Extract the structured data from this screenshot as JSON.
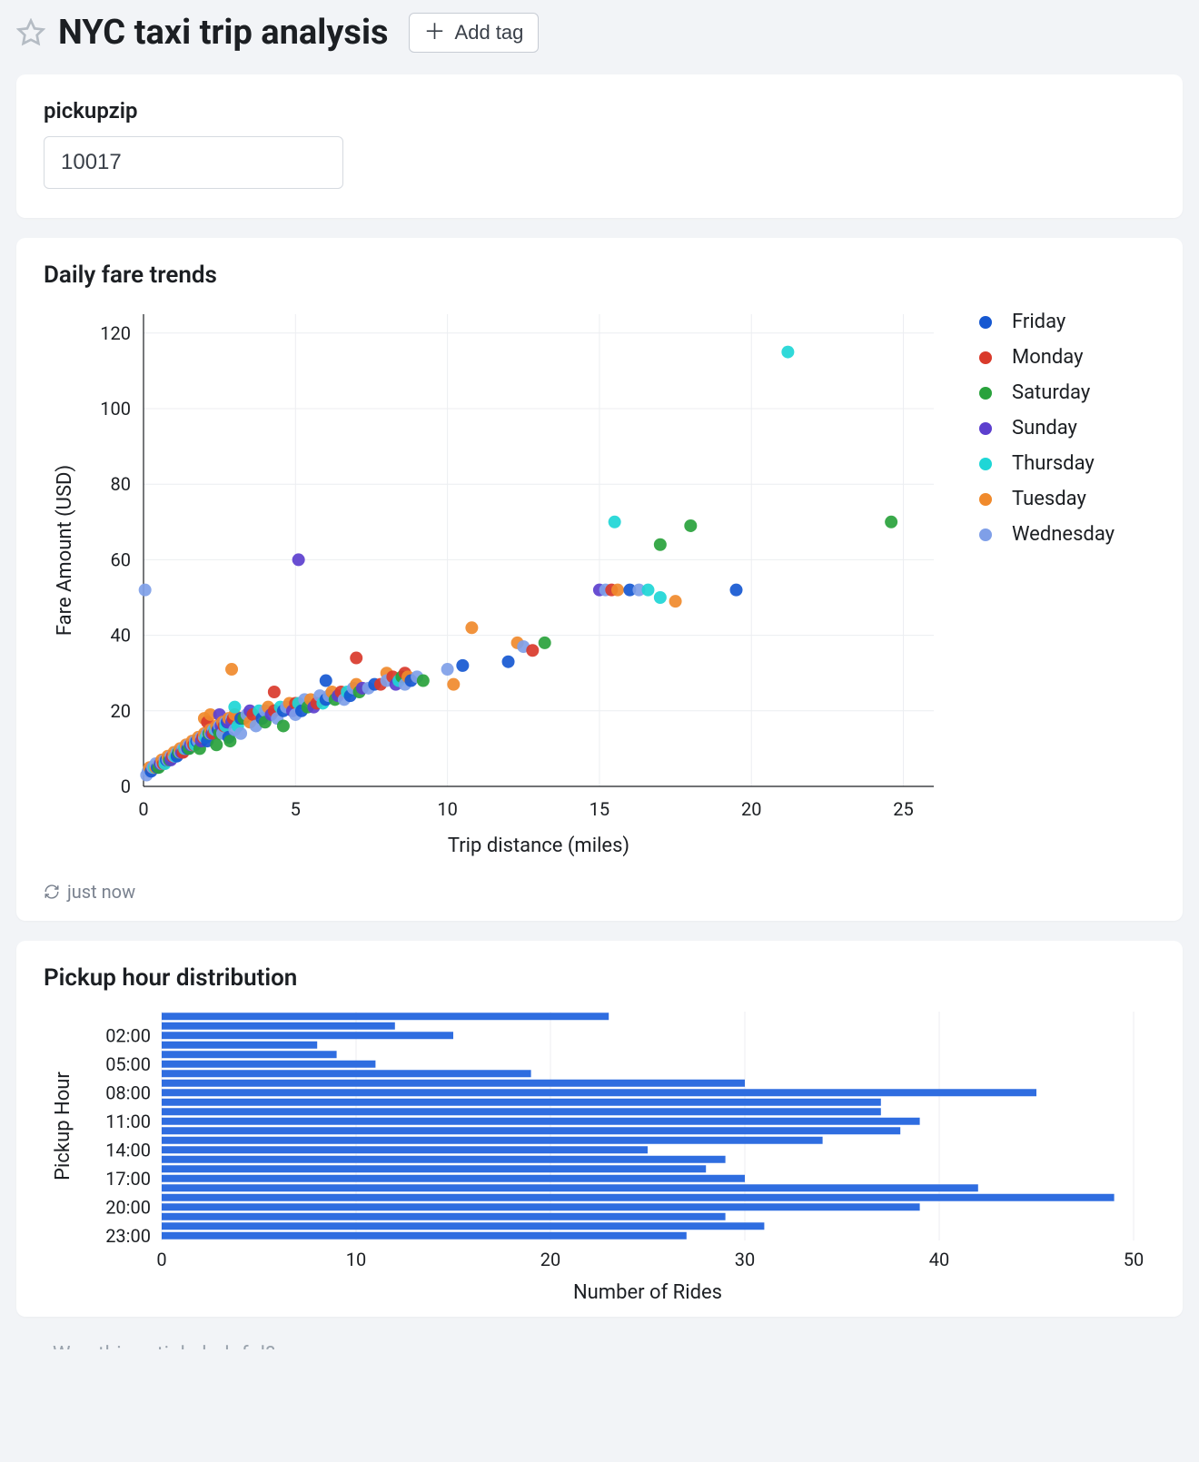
{
  "header": {
    "title": "NYC taxi trip analysis",
    "add_tag_label": "Add tag"
  },
  "param_card": {
    "label": "pickupzip",
    "value": "10017"
  },
  "scatter": {
    "title": "Daily fare trends",
    "type": "scatter",
    "xlabel": "Trip distance (miles)",
    "ylabel": "Fare Amount (USD)",
    "xlim": [
      0,
      26
    ],
    "ylim": [
      0,
      125
    ],
    "xticks": [
      0,
      5,
      10,
      15,
      20,
      25
    ],
    "yticks": [
      0,
      20,
      40,
      60,
      80,
      100,
      120
    ],
    "label_fontsize": 22,
    "tick_fontsize": 20,
    "marker_radius": 7,
    "background_color": "#ffffff",
    "grid_color": "#eceef1",
    "axis_color": "#1c1f23",
    "series": [
      {
        "name": "Friday",
        "color": "#1658d1"
      },
      {
        "name": "Monday",
        "color": "#d93a2b"
      },
      {
        "name": "Saturday",
        "color": "#29a23c"
      },
      {
        "name": "Sunday",
        "color": "#5c3fce"
      },
      {
        "name": "Thursday",
        "color": "#1ed6d6"
      },
      {
        "name": "Tuesday",
        "color": "#f08a2c"
      },
      {
        "name": "Wednesday",
        "color": "#7f9fe8"
      }
    ],
    "points": [
      [
        0.1,
        3,
        "Wednesday"
      ],
      [
        0.15,
        4,
        "Wednesday"
      ],
      [
        0.2,
        4,
        "Wednesday"
      ],
      [
        0.2,
        5,
        "Tuesday"
      ],
      [
        0.25,
        4,
        "Friday"
      ],
      [
        0.3,
        5,
        "Monday"
      ],
      [
        0.3,
        5,
        "Wednesday"
      ],
      [
        0.35,
        5,
        "Thursday"
      ],
      [
        0.4,
        5,
        "Tuesday"
      ],
      [
        0.4,
        6,
        "Wednesday"
      ],
      [
        0.45,
        5,
        "Friday"
      ],
      [
        0.5,
        6,
        "Wednesday"
      ],
      [
        0.5,
        5,
        "Saturday"
      ],
      [
        0.55,
        6,
        "Sunday"
      ],
      [
        0.6,
        6,
        "Wednesday"
      ],
      [
        0.6,
        7,
        "Tuesday"
      ],
      [
        0.65,
        6,
        "Monday"
      ],
      [
        0.7,
        7,
        "Wednesday"
      ],
      [
        0.7,
        6,
        "Thursday"
      ],
      [
        0.75,
        7,
        "Friday"
      ],
      [
        0.8,
        7,
        "Wednesday"
      ],
      [
        0.8,
        8,
        "Tuesday"
      ],
      [
        0.85,
        7,
        "Saturday"
      ],
      [
        0.9,
        8,
        "Wednesday"
      ],
      [
        0.9,
        7,
        "Sunday"
      ],
      [
        0.95,
        8,
        "Monday"
      ],
      [
        1.0,
        8,
        "Wednesday"
      ],
      [
        1.0,
        9,
        "Tuesday"
      ],
      [
        1.05,
        8,
        "Thursday"
      ],
      [
        1.1,
        9,
        "Wednesday"
      ],
      [
        1.1,
        8,
        "Friday"
      ],
      [
        1.15,
        9,
        "Saturday"
      ],
      [
        1.2,
        9,
        "Wednesday"
      ],
      [
        1.2,
        10,
        "Tuesday"
      ],
      [
        1.25,
        9,
        "Sunday"
      ],
      [
        1.3,
        10,
        "Wednesday"
      ],
      [
        1.3,
        9,
        "Monday"
      ],
      [
        1.35,
        10,
        "Thursday"
      ],
      [
        1.4,
        10,
        "Wednesday"
      ],
      [
        1.4,
        11,
        "Tuesday"
      ],
      [
        1.45,
        10,
        "Friday"
      ],
      [
        1.5,
        11,
        "Wednesday"
      ],
      [
        1.5,
        10,
        "Saturday"
      ],
      [
        1.55,
        11,
        "Sunday"
      ],
      [
        1.6,
        11,
        "Wednesday"
      ],
      [
        1.6,
        12,
        "Tuesday"
      ],
      [
        1.65,
        11,
        "Monday"
      ],
      [
        1.7,
        12,
        "Wednesday"
      ],
      [
        1.7,
        11,
        "Thursday"
      ],
      [
        1.75,
        12,
        "Friday"
      ],
      [
        1.8,
        12,
        "Wednesday"
      ],
      [
        1.8,
        13,
        "Tuesday"
      ],
      [
        1.85,
        10,
        "Saturday"
      ],
      [
        1.9,
        13,
        "Wednesday"
      ],
      [
        1.9,
        12,
        "Sunday"
      ],
      [
        1.95,
        13,
        "Monday"
      ],
      [
        2.0,
        13,
        "Wednesday"
      ],
      [
        2.0,
        14,
        "Tuesday"
      ],
      [
        2.0,
        18,
        "Tuesday"
      ],
      [
        2.05,
        13,
        "Thursday"
      ],
      [
        2.1,
        14,
        "Wednesday"
      ],
      [
        2.1,
        12,
        "Friday"
      ],
      [
        2.1,
        17,
        "Monday"
      ],
      [
        2.15,
        14,
        "Saturday"
      ],
      [
        2.2,
        14,
        "Wednesday"
      ],
      [
        2.2,
        15,
        "Tuesday"
      ],
      [
        2.2,
        19,
        "Tuesday"
      ],
      [
        2.25,
        14,
        "Sunday"
      ],
      [
        2.3,
        15,
        "Wednesday"
      ],
      [
        2.3,
        14,
        "Monday"
      ],
      [
        2.35,
        15,
        "Thursday"
      ],
      [
        2.4,
        15,
        "Wednesday"
      ],
      [
        2.4,
        16,
        "Tuesday"
      ],
      [
        2.4,
        11,
        "Saturday"
      ],
      [
        2.45,
        15,
        "Friday"
      ],
      [
        2.5,
        16,
        "Wednesday"
      ],
      [
        2.5,
        14,
        "Saturday"
      ],
      [
        2.5,
        19,
        "Sunday"
      ],
      [
        2.55,
        16,
        "Sunday"
      ],
      [
        2.6,
        14,
        "Wednesday"
      ],
      [
        2.6,
        17,
        "Tuesday"
      ],
      [
        2.65,
        16,
        "Monday"
      ],
      [
        2.7,
        17,
        "Wednesday"
      ],
      [
        2.7,
        16,
        "Thursday"
      ],
      [
        2.75,
        17,
        "Friday"
      ],
      [
        2.8,
        17,
        "Sunday"
      ],
      [
        2.8,
        18,
        "Tuesday"
      ],
      [
        2.8,
        13,
        "Friday"
      ],
      [
        2.85,
        12,
        "Saturday"
      ],
      [
        2.9,
        18,
        "Wednesday"
      ],
      [
        2.9,
        17,
        "Sunday"
      ],
      [
        2.9,
        31,
        "Tuesday"
      ],
      [
        2.95,
        18,
        "Monday"
      ],
      [
        3.0,
        15,
        "Wednesday"
      ],
      [
        3.0,
        19,
        "Tuesday"
      ],
      [
        3.0,
        21,
        "Thursday"
      ],
      [
        3.1,
        16,
        "Thursday"
      ],
      [
        3.2,
        18,
        "Friday"
      ],
      [
        3.2,
        14,
        "Wednesday"
      ],
      [
        3.3,
        18,
        "Saturday"
      ],
      [
        3.4,
        19,
        "Wednesday"
      ],
      [
        3.5,
        17,
        "Tuesday"
      ],
      [
        3.5,
        20,
        "Sunday"
      ],
      [
        3.6,
        19,
        "Monday"
      ],
      [
        3.7,
        16,
        "Wednesday"
      ],
      [
        3.8,
        20,
        "Thursday"
      ],
      [
        3.9,
        18,
        "Friday"
      ],
      [
        4.0,
        20,
        "Wednesday"
      ],
      [
        4.0,
        17,
        "Saturday"
      ],
      [
        4.1,
        21,
        "Tuesday"
      ],
      [
        4.2,
        19,
        "Sunday"
      ],
      [
        4.3,
        20,
        "Monday"
      ],
      [
        4.3,
        25,
        "Monday"
      ],
      [
        4.4,
        18,
        "Wednesday"
      ],
      [
        4.5,
        21,
        "Thursday"
      ],
      [
        4.6,
        20,
        "Friday"
      ],
      [
        4.6,
        16,
        "Saturday"
      ],
      [
        4.7,
        21,
        "Wednesday"
      ],
      [
        4.8,
        22,
        "Tuesday"
      ],
      [
        4.9,
        20,
        "Sunday"
      ],
      [
        5.0,
        22,
        "Monday"
      ],
      [
        5.0,
        19,
        "Wednesday"
      ],
      [
        5.1,
        60,
        "Sunday"
      ],
      [
        5.1,
        22,
        "Thursday"
      ],
      [
        5.2,
        20,
        "Friday"
      ],
      [
        5.3,
        23,
        "Wednesday"
      ],
      [
        5.4,
        21,
        "Saturday"
      ],
      [
        5.5,
        23,
        "Tuesday"
      ],
      [
        5.6,
        21,
        "Sunday"
      ],
      [
        5.7,
        22,
        "Monday"
      ],
      [
        5.8,
        24,
        "Wednesday"
      ],
      [
        5.9,
        22,
        "Thursday"
      ],
      [
        6.0,
        28,
        "Friday"
      ],
      [
        6.0,
        23,
        "Friday"
      ],
      [
        6.1,
        24,
        "Wednesday"
      ],
      [
        6.2,
        25,
        "Tuesday"
      ],
      [
        6.3,
        23,
        "Saturday"
      ],
      [
        6.4,
        24,
        "Sunday"
      ],
      [
        6.5,
        25,
        "Monday"
      ],
      [
        6.6,
        23,
        "Wednesday"
      ],
      [
        6.7,
        25,
        "Thursday"
      ],
      [
        6.8,
        24,
        "Friday"
      ],
      [
        6.9,
        26,
        "Wednesday"
      ],
      [
        7.0,
        27,
        "Tuesday"
      ],
      [
        7.0,
        34,
        "Monday"
      ],
      [
        7.1,
        25,
        "Saturday"
      ],
      [
        7.2,
        26,
        "Sunday"
      ],
      [
        7.4,
        26,
        "Wednesday"
      ],
      [
        7.6,
        27,
        "Friday"
      ],
      [
        7.8,
        27,
        "Monday"
      ],
      [
        8.0,
        30,
        "Tuesday"
      ],
      [
        8.0,
        28,
        "Wednesday"
      ],
      [
        8.2,
        29,
        "Monday"
      ],
      [
        8.3,
        27,
        "Sunday"
      ],
      [
        8.4,
        28,
        "Thursday"
      ],
      [
        8.5,
        29,
        "Saturday"
      ],
      [
        8.6,
        27,
        "Wednesday"
      ],
      [
        8.6,
        30,
        "Monday"
      ],
      [
        8.7,
        29,
        "Tuesday"
      ],
      [
        8.8,
        28,
        "Friday"
      ],
      [
        9.0,
        29,
        "Wednesday"
      ],
      [
        9.2,
        28,
        "Saturday"
      ],
      [
        10.0,
        31,
        "Wednesday"
      ],
      [
        10.2,
        27,
        "Tuesday"
      ],
      [
        10.5,
        32,
        "Friday"
      ],
      [
        10.8,
        42,
        "Tuesday"
      ],
      [
        12.0,
        33,
        "Friday"
      ],
      [
        12.3,
        38,
        "Tuesday"
      ],
      [
        12.5,
        37,
        "Wednesday"
      ],
      [
        12.8,
        36,
        "Monday"
      ],
      [
        13.2,
        38,
        "Saturday"
      ],
      [
        15.0,
        52,
        "Sunday"
      ],
      [
        15.2,
        52,
        "Wednesday"
      ],
      [
        15.4,
        52,
        "Monday"
      ],
      [
        15.6,
        52,
        "Tuesday"
      ],
      [
        15.5,
        70,
        "Thursday"
      ],
      [
        16.0,
        52,
        "Friday"
      ],
      [
        16.3,
        52,
        "Wednesday"
      ],
      [
        16.6,
        52,
        "Thursday"
      ],
      [
        17.0,
        50,
        "Thursday"
      ],
      [
        17.0,
        64,
        "Saturday"
      ],
      [
        17.5,
        49,
        "Tuesday"
      ],
      [
        18.0,
        69,
        "Saturday"
      ],
      [
        19.5,
        52,
        "Friday"
      ],
      [
        21.2,
        115,
        "Thursday"
      ],
      [
        24.6,
        70,
        "Saturday"
      ],
      [
        0.05,
        52,
        "Wednesday"
      ]
    ],
    "refresh_label": "just now"
  },
  "barchart": {
    "title": "Pickup hour distribution",
    "type": "bar-horizontal",
    "xlabel": "Number of Rides",
    "ylabel": "Pickup Hour",
    "xlim": [
      0,
      50
    ],
    "xticks": [
      0,
      10,
      20,
      30,
      40,
      50
    ],
    "ytick_labels": [
      "02:00",
      "05:00",
      "08:00",
      "11:00",
      "14:00",
      "17:00",
      "20:00",
      "23:00"
    ],
    "ytick_indices": [
      2,
      5,
      8,
      11,
      14,
      17,
      20,
      23
    ],
    "label_fontsize": 22,
    "tick_fontsize": 20,
    "bar_color": "#2f6de0",
    "background_color": "#ffffff",
    "grid_color": "#eceef1",
    "categories_count": 24,
    "values": [
      23,
      12,
      15,
      8,
      9,
      11,
      19,
      30,
      45,
      37,
      37,
      39,
      38,
      34,
      25,
      29,
      28,
      30,
      42,
      49,
      39,
      29,
      31,
      27
    ]
  },
  "footer": {
    "clipped_text": "Was this article helpful?"
  }
}
